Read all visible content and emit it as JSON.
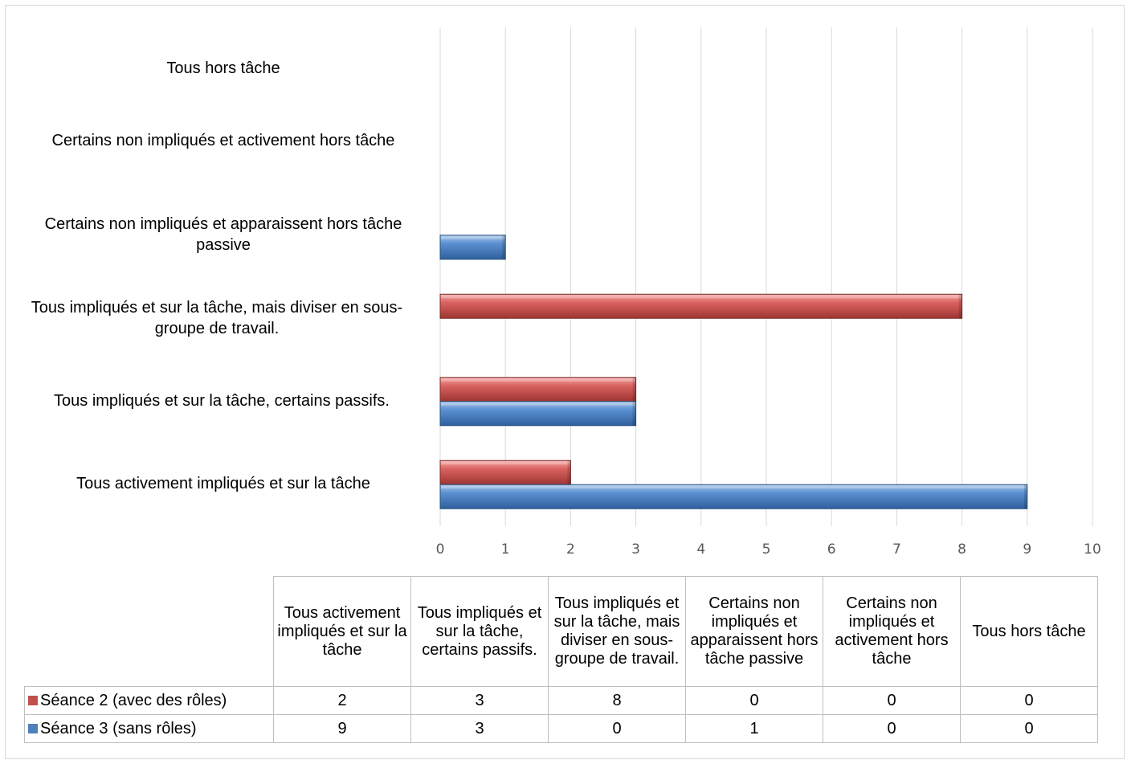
{
  "chart_data": {
    "type": "bar",
    "orientation": "horizontal",
    "categories": [
      "Tous activement impliqués et sur la tâche",
      "Tous impliqués et sur la tâche, certains passifs.",
      "Tous impliqués et sur la tâche, mais diviser en sous-groupe de travail.",
      "Certains non impliqués et apparaissent hors tâche passive",
      "Certains non impliqués et activement hors tâche",
      "Tous hors tâche"
    ],
    "series": [
      {
        "name": "Séance 2 (avec des rôles)",
        "values": [
          2,
          3,
          8,
          0,
          0,
          0
        ],
        "color": "#c0504d"
      },
      {
        "name": "Séance 3 (sans rôles)",
        "values": [
          9,
          3,
          0,
          1,
          0,
          0
        ],
        "color": "#4f81bd"
      }
    ],
    "xlim": [
      0,
      10
    ],
    "x_ticks": [
      "0",
      "1",
      "2",
      "3",
      "4",
      "5",
      "6",
      "7",
      "8",
      "9",
      "10"
    ],
    "grid": true,
    "legend": "data-table"
  }
}
